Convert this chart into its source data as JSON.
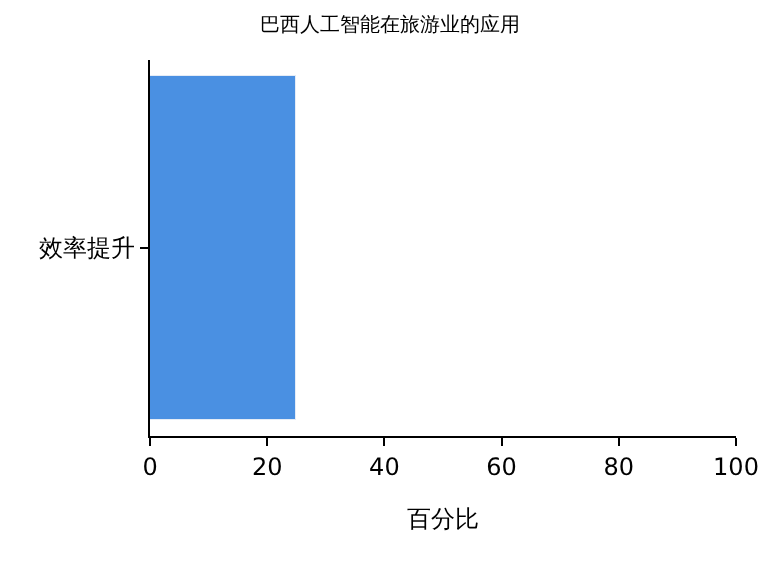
{
  "chart_data": {
    "type": "bar",
    "orientation": "horizontal",
    "title": "巴西人工智能在旅游业的应用",
    "xlabel": "百分比",
    "categories": [
      "效率提升"
    ],
    "values": [
      25
    ],
    "color": "#4a90e2",
    "xlim": [
      0,
      100
    ],
    "xticks": [
      0,
      20,
      40,
      60,
      80,
      100
    ],
    "legend": false
  }
}
